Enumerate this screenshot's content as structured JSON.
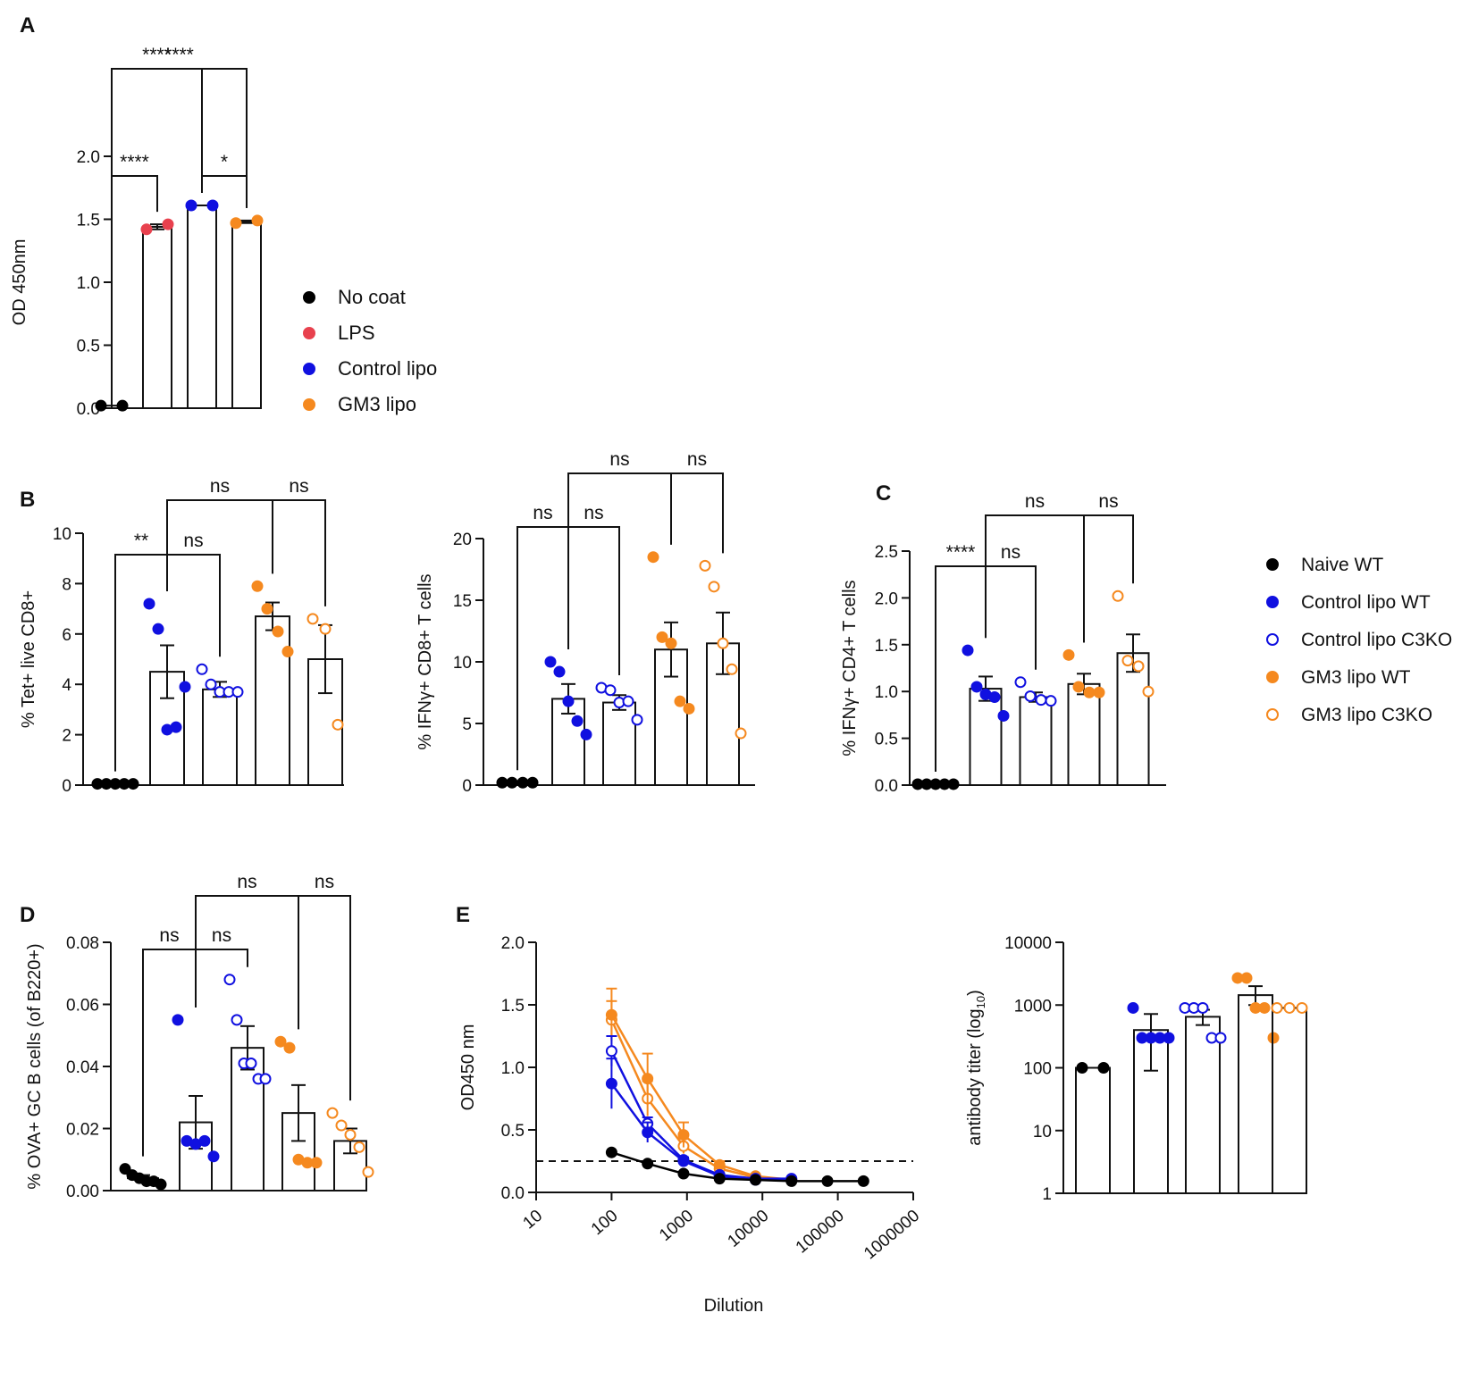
{
  "colors": {
    "black": "#000000",
    "red": "#e8414e",
    "blue": "#1010e0",
    "orange": "#f5891f"
  },
  "panel_labels": [
    "A",
    "B",
    "C",
    "D",
    "E"
  ],
  "legend_A": [
    {
      "label": "No coat",
      "color": "#000000",
      "filled": true
    },
    {
      "label": "LPS",
      "color": "#e8414e",
      "filled": true
    },
    {
      "label": "Control lipo",
      "color": "#1010e0",
      "filled": true
    },
    {
      "label": "GM3 lipo",
      "color": "#f5891f",
      "filled": true
    }
  ],
  "legend_C": [
    {
      "label": "Naive WT",
      "color": "#000000",
      "filled": true
    },
    {
      "label": "Control lipo WT",
      "color": "#1010e0",
      "filled": true
    },
    {
      "label": "Control lipo C3KO",
      "color": "#1010e0",
      "filled": false
    },
    {
      "label": "GM3 lipo WT",
      "color": "#f5891f",
      "filled": true
    },
    {
      "label": "GM3 lipo C3KO",
      "color": "#f5891f",
      "filled": false
    }
  ],
  "chart_data": [
    {
      "id": "A",
      "type": "bar",
      "ylabel": "OD 450nm",
      "ylim": [
        0,
        2.0
      ],
      "yticks": [
        0,
        0.5,
        1.0,
        1.5,
        2.0
      ],
      "ytick_labels": [
        "0.0",
        "0.5",
        "1.0",
        "1.5",
        "2.0"
      ],
      "groups": [
        {
          "name": "No coat",
          "color": "#000000",
          "filled": true,
          "mean": 0.02,
          "sem": 0,
          "points": [
            0.02,
            0.02
          ]
        },
        {
          "name": "LPS",
          "color": "#e8414e",
          "filled": true,
          "mean": 1.44,
          "sem": 0.02,
          "points": [
            1.42,
            1.46
          ]
        },
        {
          "name": "Control lipo",
          "color": "#1010e0",
          "filled": true,
          "mean": 1.61,
          "sem": 0,
          "points": [
            1.61,
            1.61
          ]
        },
        {
          "name": "GM3 lipo",
          "color": "#f5891f",
          "filled": true,
          "mean": 1.48,
          "sem": 0.01,
          "points": [
            1.47,
            1.49
          ]
        }
      ],
      "significance": [
        {
          "from": 0,
          "to": 1,
          "label": "****"
        },
        {
          "from": 2,
          "to": 3,
          "label": "*"
        },
        {
          "from": 0,
          "to": 2,
          "label": "****"
        },
        {
          "from": 0,
          "to": 3,
          "label": "****"
        }
      ]
    },
    {
      "id": "B1",
      "type": "bar",
      "ylabel": "% Tet+ live CD8+",
      "ylim": [
        0,
        10
      ],
      "yticks": [
        0,
        2,
        4,
        6,
        8,
        10
      ],
      "ytick_labels": [
        "0",
        "2",
        "4",
        "6",
        "8",
        "10"
      ],
      "groups": [
        {
          "name": "Naive WT",
          "color": "#000000",
          "filled": true,
          "mean": 0.05,
          "sem": 0,
          "points": [
            0.05,
            0.05,
            0.05,
            0.05,
            0.05
          ]
        },
        {
          "name": "Control lipo WT",
          "color": "#1010e0",
          "filled": true,
          "mean": 4.5,
          "sem": 1.05,
          "points": [
            7.2,
            6.2,
            2.2,
            2.3,
            3.9
          ]
        },
        {
          "name": "Control lipo C3KO",
          "color": "#1010e0",
          "filled": false,
          "mean": 3.8,
          "sem": 0.3,
          "points": [
            4.6,
            4.0,
            3.7,
            3.7,
            3.7
          ]
        },
        {
          "name": "GM3 lipo WT",
          "color": "#f5891f",
          "filled": true,
          "mean": 6.7,
          "sem": 0.55,
          "points": [
            7.9,
            7.0,
            6.1,
            5.3
          ]
        },
        {
          "name": "GM3 lipo C3KO",
          "color": "#f5891f",
          "filled": false,
          "mean": 5.0,
          "sem": 1.35,
          "points": [
            6.6,
            6.2,
            2.4
          ]
        }
      ],
      "significance": [
        {
          "from": 0,
          "to": 1,
          "label": "**"
        },
        {
          "from": 1,
          "to": 2,
          "label": "ns"
        },
        {
          "from": 3,
          "to": 4,
          "label": "ns"
        },
        {
          "from": 1,
          "to": 3,
          "label": "ns"
        }
      ]
    },
    {
      "id": "B2",
      "type": "bar",
      "ylabel": "% IFNγ+ CD8+ T cells",
      "ylim": [
        0,
        20
      ],
      "yticks": [
        0,
        5,
        10,
        15,
        20
      ],
      "ytick_labels": [
        "0",
        "5",
        "10",
        "15",
        "20"
      ],
      "groups": [
        {
          "name": "Naive WT",
          "color": "#000000",
          "filled": true,
          "mean": 0.2,
          "sem": 0,
          "points": [
            0.2,
            0.2,
            0.2,
            0.2
          ]
        },
        {
          "name": "Control lipo WT",
          "color": "#1010e0",
          "filled": true,
          "mean": 7.0,
          "sem": 1.2,
          "points": [
            10.0,
            9.2,
            6.8,
            5.2,
            4.1
          ]
        },
        {
          "name": "Control lipo C3KO",
          "color": "#1010e0",
          "filled": false,
          "mean": 6.7,
          "sem": 0.6,
          "points": [
            7.9,
            7.7,
            6.7,
            6.8,
            5.3
          ]
        },
        {
          "name": "GM3 lipo WT",
          "color": "#f5891f",
          "filled": true,
          "mean": 11.0,
          "sem": 2.2,
          "points": [
            18.5,
            12.0,
            11.5,
            6.8,
            6.2
          ]
        },
        {
          "name": "GM3 lipo C3KO",
          "color": "#f5891f",
          "filled": false,
          "mean": 11.5,
          "sem": 2.5,
          "points": [
            17.8,
            16.1,
            11.5,
            9.4,
            4.2
          ]
        }
      ],
      "significance": [
        {
          "from": 0,
          "to": 1,
          "label": "ns"
        },
        {
          "from": 1,
          "to": 2,
          "label": "ns"
        },
        {
          "from": 3,
          "to": 4,
          "label": "ns"
        },
        {
          "from": 1,
          "to": 3,
          "label": "ns"
        }
      ]
    },
    {
      "id": "C",
      "type": "bar",
      "ylabel": "% IFNγ+ CD4+ T cells",
      "ylim": [
        0,
        2.5
      ],
      "yticks": [
        0,
        0.5,
        1.0,
        1.5,
        2.0,
        2.5
      ],
      "ytick_labels": [
        "0.0",
        "0.5",
        "1.0",
        "1.5",
        "2.0",
        "2.5"
      ],
      "groups": [
        {
          "name": "Naive WT",
          "color": "#000000",
          "filled": true,
          "mean": 0.01,
          "sem": 0,
          "points": [
            0.01,
            0.01,
            0.01,
            0.01,
            0.01
          ]
        },
        {
          "name": "Control lipo WT",
          "color": "#1010e0",
          "filled": true,
          "mean": 1.03,
          "sem": 0.13,
          "points": [
            1.44,
            1.05,
            0.97,
            0.94,
            0.74
          ]
        },
        {
          "name": "Control lipo C3KO",
          "color": "#1010e0",
          "filled": false,
          "mean": 0.94,
          "sem": 0.05,
          "points": [
            1.1,
            0.95,
            0.91,
            0.9
          ]
        },
        {
          "name": "GM3 lipo WT",
          "color": "#f5891f",
          "filled": true,
          "mean": 1.08,
          "sem": 0.11,
          "points": [
            1.39,
            1.05,
            0.99,
            0.99
          ]
        },
        {
          "name": "GM3 lipo C3KO",
          "color": "#f5891f",
          "filled": false,
          "mean": 1.41,
          "sem": 0.2,
          "points": [
            2.02,
            1.33,
            1.27,
            1.0
          ]
        }
      ],
      "significance": [
        {
          "from": 0,
          "to": 1,
          "label": "****"
        },
        {
          "from": 1,
          "to": 2,
          "label": "ns"
        },
        {
          "from": 3,
          "to": 4,
          "label": "ns"
        },
        {
          "from": 1,
          "to": 3,
          "label": "ns"
        }
      ]
    },
    {
      "id": "D",
      "type": "bar",
      "ylabel": "% OVA+ GC B cells (of B220+)",
      "ylim": [
        0,
        0.08
      ],
      "yticks": [
        0,
        0.02,
        0.04,
        0.06,
        0.08
      ],
      "ytick_labels": [
        "0.00",
        "0.02",
        "0.04",
        "0.06",
        "0.08"
      ],
      "groups": [
        {
          "name": "Naive WT",
          "color": "#000000",
          "filled": true,
          "mean": 0.004,
          "sem": 0.001,
          "points": [
            0.007,
            0.005,
            0.004,
            0.003,
            0.003,
            0.002
          ]
        },
        {
          "name": "Control lipo WT",
          "color": "#1010e0",
          "filled": true,
          "mean": 0.022,
          "sem": 0.0085,
          "points": [
            0.055,
            0.016,
            0.015,
            0.016,
            0.011
          ]
        },
        {
          "name": "Control lipo C3KO",
          "color": "#1010e0",
          "filled": false,
          "mean": 0.046,
          "sem": 0.007,
          "points": [
            0.068,
            0.055,
            0.041,
            0.041,
            0.036,
            0.036
          ]
        },
        {
          "name": "GM3 lipo WT",
          "color": "#f5891f",
          "filled": true,
          "mean": 0.025,
          "sem": 0.009,
          "points": [
            0.048,
            0.046,
            0.01,
            0.009,
            0.009
          ]
        },
        {
          "name": "GM3 lipo C3KO",
          "color": "#f5891f",
          "filled": false,
          "mean": 0.016,
          "sem": 0.004,
          "points": [
            0.025,
            0.021,
            0.018,
            0.014,
            0.006
          ]
        }
      ],
      "significance": [
        {
          "from": 0,
          "to": 1,
          "label": "ns"
        },
        {
          "from": 1,
          "to": 2,
          "label": "ns"
        },
        {
          "from": 3,
          "to": 4,
          "label": "ns"
        },
        {
          "from": 1,
          "to": 3,
          "label": "ns"
        }
      ]
    },
    {
      "id": "E1",
      "type": "line",
      "xlabel": "Dilution",
      "ylabel": "OD450 nm",
      "xscale": "log",
      "xlim": [
        10,
        1000000
      ],
      "ylim": [
        0,
        2.0
      ],
      "xticks": [
        10,
        100,
        1000,
        10000,
        100000,
        1000000
      ],
      "xtick_labels": [
        "10",
        "100",
        "1000",
        "10000",
        "100000",
        "1000000"
      ],
      "yticks": [
        0,
        0.5,
        1.0,
        1.5,
        2.0
      ],
      "ytick_labels": [
        "0.0",
        "0.5",
        "1.0",
        "1.5",
        "2.0"
      ],
      "threshold": 0.25,
      "x": [
        100,
        300,
        900,
        2700,
        8100,
        24300,
        72900,
        218700
      ],
      "series": [
        {
          "name": "Naive WT",
          "color": "#000000",
          "filled": true,
          "values": [
            0.32,
            0.23,
            0.15,
            0.11,
            0.1,
            0.09,
            0.09,
            0.09
          ],
          "err": [
            0,
            0,
            0,
            0,
            0,
            0,
            0,
            0
          ]
        },
        {
          "name": "Control lipo WT",
          "color": "#1010e0",
          "filled": true,
          "values": [
            0.87,
            0.48,
            0.25,
            0.13,
            0.1,
            0.1,
            null,
            null
          ],
          "err": [
            0.2,
            0.08,
            0.03,
            0.01,
            0.01,
            0.01,
            null,
            null
          ]
        },
        {
          "name": "Control lipo C3KO",
          "color": "#1010e0",
          "filled": false,
          "values": [
            1.13,
            0.55,
            0.26,
            0.14,
            0.11,
            0.11,
            null,
            null
          ],
          "err": [
            0.12,
            0.05,
            0.02,
            0.01,
            0.01,
            0.01,
            null,
            null
          ]
        },
        {
          "name": "GM3 lipo WT",
          "color": "#f5891f",
          "filled": true,
          "values": [
            1.42,
            0.91,
            0.46,
            0.22,
            0.13,
            0.1,
            null,
            null
          ],
          "err": [
            0.21,
            0.2,
            0.1,
            0.03,
            0.01,
            0.01,
            null,
            null
          ]
        },
        {
          "name": "GM3 lipo C3KO",
          "color": "#f5891f",
          "filled": false,
          "values": [
            1.38,
            0.75,
            0.37,
            0.19,
            0.12,
            0.1,
            null,
            null
          ],
          "err": [
            0.15,
            0.14,
            0.06,
            0.02,
            0.01,
            0.01,
            null,
            null
          ]
        }
      ]
    },
    {
      "id": "E2",
      "type": "bar",
      "ylabel_prefix": "antibody titer (log",
      "ylabel_sub": "10",
      "ylabel_suffix": ")",
      "yscale": "log",
      "ylim": [
        1,
        10000
      ],
      "yticks": [
        1,
        10,
        100,
        1000,
        10000
      ],
      "ytick_labels": [
        "1",
        "10",
        "100",
        "1000",
        "10000"
      ],
      "groups": [
        {
          "name": "Naive WT",
          "color": "#000000",
          "filled": true,
          "mean": 100,
          "sem_lo": null,
          "sem_hi": null,
          "points": [
            100,
            100
          ]
        },
        {
          "name": "Control lipo WT",
          "color": "#1010e0",
          "filled": true,
          "mean": 400,
          "sem_lo": 90,
          "sem_hi": 720,
          "points": [
            900,
            300,
            300,
            300,
            300
          ]
        },
        {
          "name": "Control lipo C3KO",
          "color": "#1010e0",
          "filled": false,
          "mean": 650,
          "sem_lo": 480,
          "sem_hi": 840,
          "points": [
            900,
            900,
            900,
            300,
            300
          ]
        },
        {
          "name": "GM3 lipo WT",
          "color": "#f5891f",
          "filled": true,
          "mean": 1440,
          "sem_lo": 1000,
          "sem_hi": 2000,
          "points": [
            2700,
            2700,
            900,
            900,
            300
          ]
        },
        {
          "name": "GM3 lipo C3KO",
          "color": "#f5891f",
          "filled": false,
          "mean": 900,
          "sem_lo": null,
          "sem_hi": null,
          "points": [
            900,
            900,
            900
          ]
        }
      ]
    }
  ]
}
